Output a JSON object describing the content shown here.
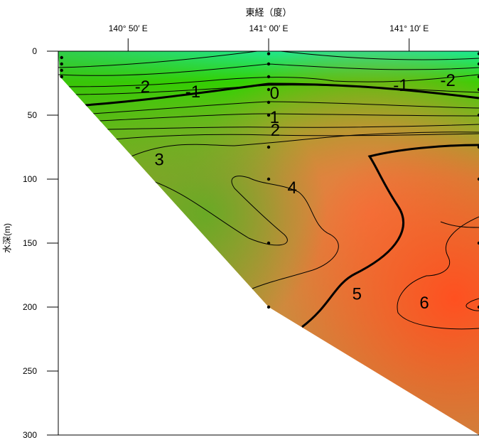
{
  "chart_data": {
    "type": "heatmap",
    "title": "",
    "xlabel": "東経（度）",
    "ylabel": "水深(m)",
    "x_ticks": [
      {
        "label": "140° 50′ E",
        "value": 140.833
      },
      {
        "label": "141° 00′ E",
        "value": 141.0
      },
      {
        "label": "141° 10′ E",
        "value": 141.167
      }
    ],
    "xlim": [
      140.75,
      141.25
    ],
    "ylim": [
      0,
      300
    ],
    "y_ticks": [
      0,
      50,
      100,
      150,
      200,
      250,
      300
    ],
    "y_inverted": true,
    "grid": false,
    "contour_labels": [
      {
        "text": "-2",
        "x": 140.85,
        "y": 28
      },
      {
        "text": "-1",
        "x": 140.91,
        "y": 32
      },
      {
        "text": "0",
        "x": 141.007,
        "y": 33
      },
      {
        "text": "1",
        "x": 141.007,
        "y": 52
      },
      {
        "text": "2",
        "x": 141.008,
        "y": 62
      },
      {
        "text": "3",
        "x": 140.87,
        "y": 85
      },
      {
        "text": "4",
        "x": 141.028,
        "y": 107
      },
      {
        "text": "5",
        "x": 141.105,
        "y": 190
      },
      {
        "text": "6",
        "x": 141.185,
        "y": 197
      },
      {
        "text": "-1",
        "x": 141.157,
        "y": 27
      },
      {
        "text": "-2",
        "x": 141.213,
        "y": 23
      }
    ],
    "stations": [
      {
        "x": 140.754,
        "depths": [
          5,
          10,
          15,
          20
        ]
      },
      {
        "x": 141.0,
        "depths": [
          2,
          10,
          20,
          30,
          40,
          50,
          75,
          100,
          150,
          200
        ]
      },
      {
        "x": 141.25,
        "depths": [
          2,
          10,
          20,
          30,
          50,
          75,
          100,
          150,
          200
        ]
      }
    ],
    "bottom_profile": [
      {
        "x": 140.752,
        "y": 20
      },
      {
        "x": 141.0,
        "y": 200
      },
      {
        "x": 141.25,
        "y": 300
      }
    ],
    "colors": {
      "cold": "#20e890",
      "green": "#30d000",
      "olive": "#8ab030",
      "warm": "#e88848",
      "hot": "#ff5828"
    }
  }
}
